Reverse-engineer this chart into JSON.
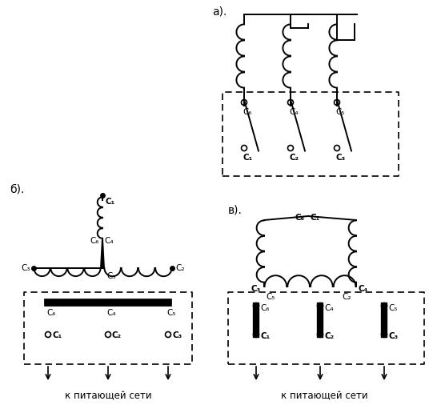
{
  "background": "#ffffff",
  "label_a": "а).",
  "label_b": "б).",
  "label_c": "в).",
  "supply_text": "к питающей сети",
  "coil_bumps": 4,
  "lw": 1.4
}
